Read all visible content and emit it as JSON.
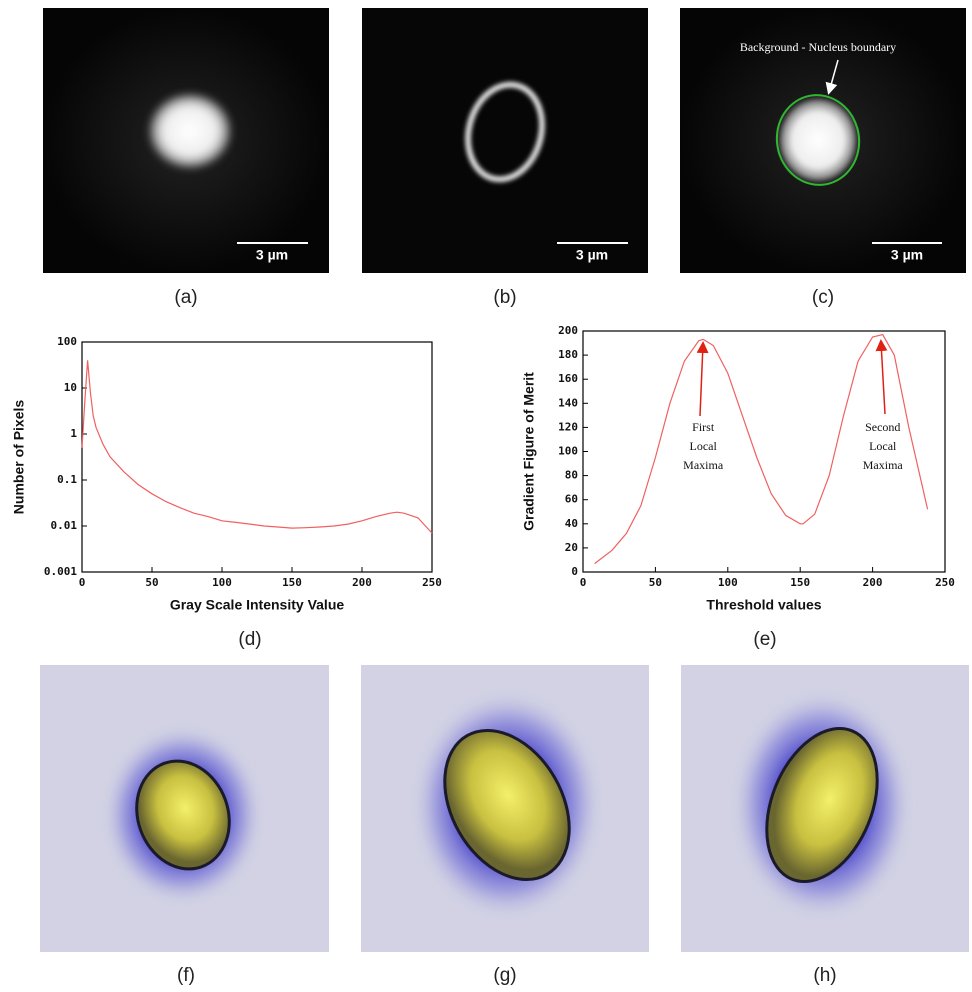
{
  "panels": [
    {
      "label": "(a)",
      "scale_bar": "3 µm"
    },
    {
      "label": "(b)",
      "scale_bar": "3 µm"
    },
    {
      "label": "(c)",
      "scale_bar": "3 µm",
      "annotation": "Background - Nucleus boundary"
    },
    {
      "label": "(f)"
    },
    {
      "label": "(g)"
    },
    {
      "label": "(h)"
    }
  ],
  "chart_data": [
    {
      "type": "line",
      "panel_label": "(d)",
      "xlabel": "Gray Scale Intensity Value",
      "ylabel": "Number of Pixels",
      "color": "#f06060",
      "log_y": true,
      "x": [
        0,
        2,
        4,
        6,
        8,
        10,
        15,
        20,
        30,
        40,
        50,
        60,
        70,
        80,
        90,
        100,
        110,
        120,
        130,
        140,
        150,
        160,
        170,
        180,
        190,
        200,
        210,
        220,
        225,
        230,
        240,
        250
      ],
      "values": [
        0.5,
        5,
        40,
        8,
        2.5,
        1.4,
        0.6,
        0.32,
        0.15,
        0.08,
        0.05,
        0.034,
        0.025,
        0.019,
        0.016,
        0.013,
        0.012,
        0.011,
        0.01,
        0.0095,
        0.009,
        0.0092,
        0.0095,
        0.01,
        0.011,
        0.013,
        0.016,
        0.019,
        0.02,
        0.019,
        0.015,
        0.007
      ],
      "xlim": [
        0,
        250
      ],
      "xticks": [
        0,
        50,
        100,
        150,
        200,
        250
      ],
      "ylim": [
        0.001,
        100
      ],
      "yticks": [
        0.001,
        0.01,
        0.1,
        1,
        10,
        100
      ]
    },
    {
      "type": "line",
      "panel_label": "(e)",
      "xlabel": "Threshold values",
      "ylabel": "Gradient Figure of Merit",
      "color": "#f06060",
      "log_y": false,
      "x": [
        8,
        20,
        30,
        40,
        50,
        60,
        70,
        80,
        83,
        90,
        100,
        110,
        120,
        130,
        140,
        150,
        152,
        160,
        170,
        180,
        190,
        200,
        207,
        215,
        225,
        238
      ],
      "values": [
        7,
        18,
        32,
        55,
        95,
        140,
        175,
        192,
        193,
        188,
        165,
        130,
        95,
        65,
        47,
        40,
        40,
        48,
        80,
        130,
        175,
        195,
        197,
        180,
        120,
        52
      ],
      "xlim": [
        0,
        250
      ],
      "xticks": [
        0,
        50,
        100,
        150,
        200,
        250
      ],
      "ylim": [
        0,
        200
      ],
      "yticks": [
        0,
        20,
        40,
        60,
        80,
        100,
        120,
        140,
        160,
        180,
        200
      ],
      "annotations": [
        [
          "First",
          "Local",
          "Maxima"
        ],
        [
          "Second",
          "Local",
          "Maxima"
        ]
      ]
    }
  ]
}
